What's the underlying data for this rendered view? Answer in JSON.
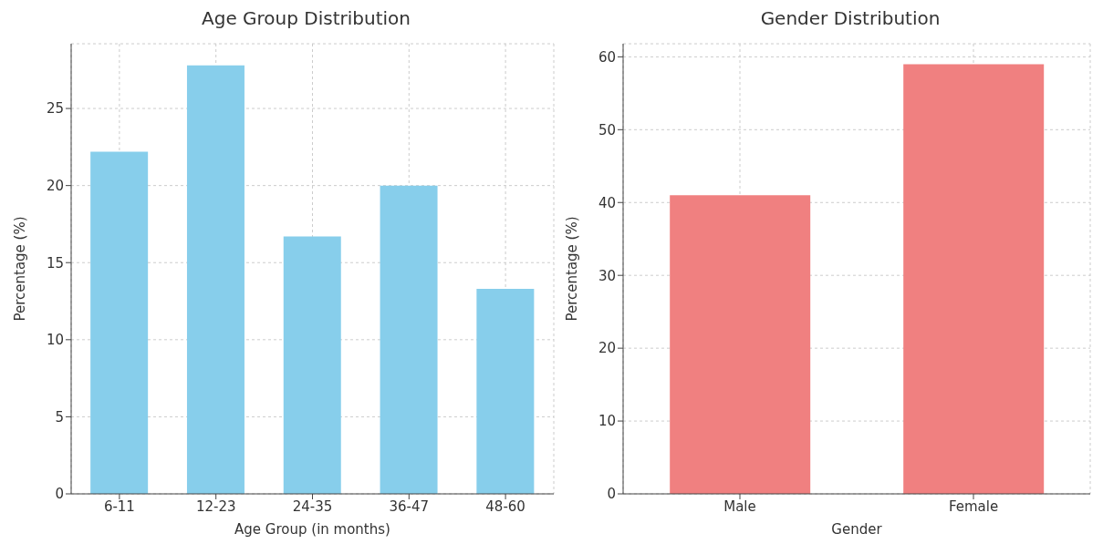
{
  "chart_data": [
    {
      "type": "bar",
      "title": "Age Group Distribution",
      "xlabel": "Age Group (in months)",
      "ylabel": "Percentage (%)",
      "categories": [
        "6-11",
        "12-23",
        "24-35",
        "36-47",
        "48-60"
      ],
      "values": [
        22.2,
        27.8,
        16.7,
        20.0,
        13.3
      ],
      "color": "#87ceeb",
      "ylim": [
        0,
        29.2
      ],
      "yticks": [
        0,
        5,
        10,
        15,
        20,
        25
      ],
      "grid": true
    },
    {
      "type": "bar",
      "title": "Gender Distribution",
      "xlabel": "Gender",
      "ylabel": "Percentage (%)",
      "categories": [
        "Male",
        "Female"
      ],
      "values": [
        41.0,
        59.0
      ],
      "color": "#f08080",
      "ylim": [
        0,
        61.8
      ],
      "yticks": [
        0,
        10,
        20,
        30,
        40,
        50,
        60
      ],
      "grid": true
    }
  ]
}
